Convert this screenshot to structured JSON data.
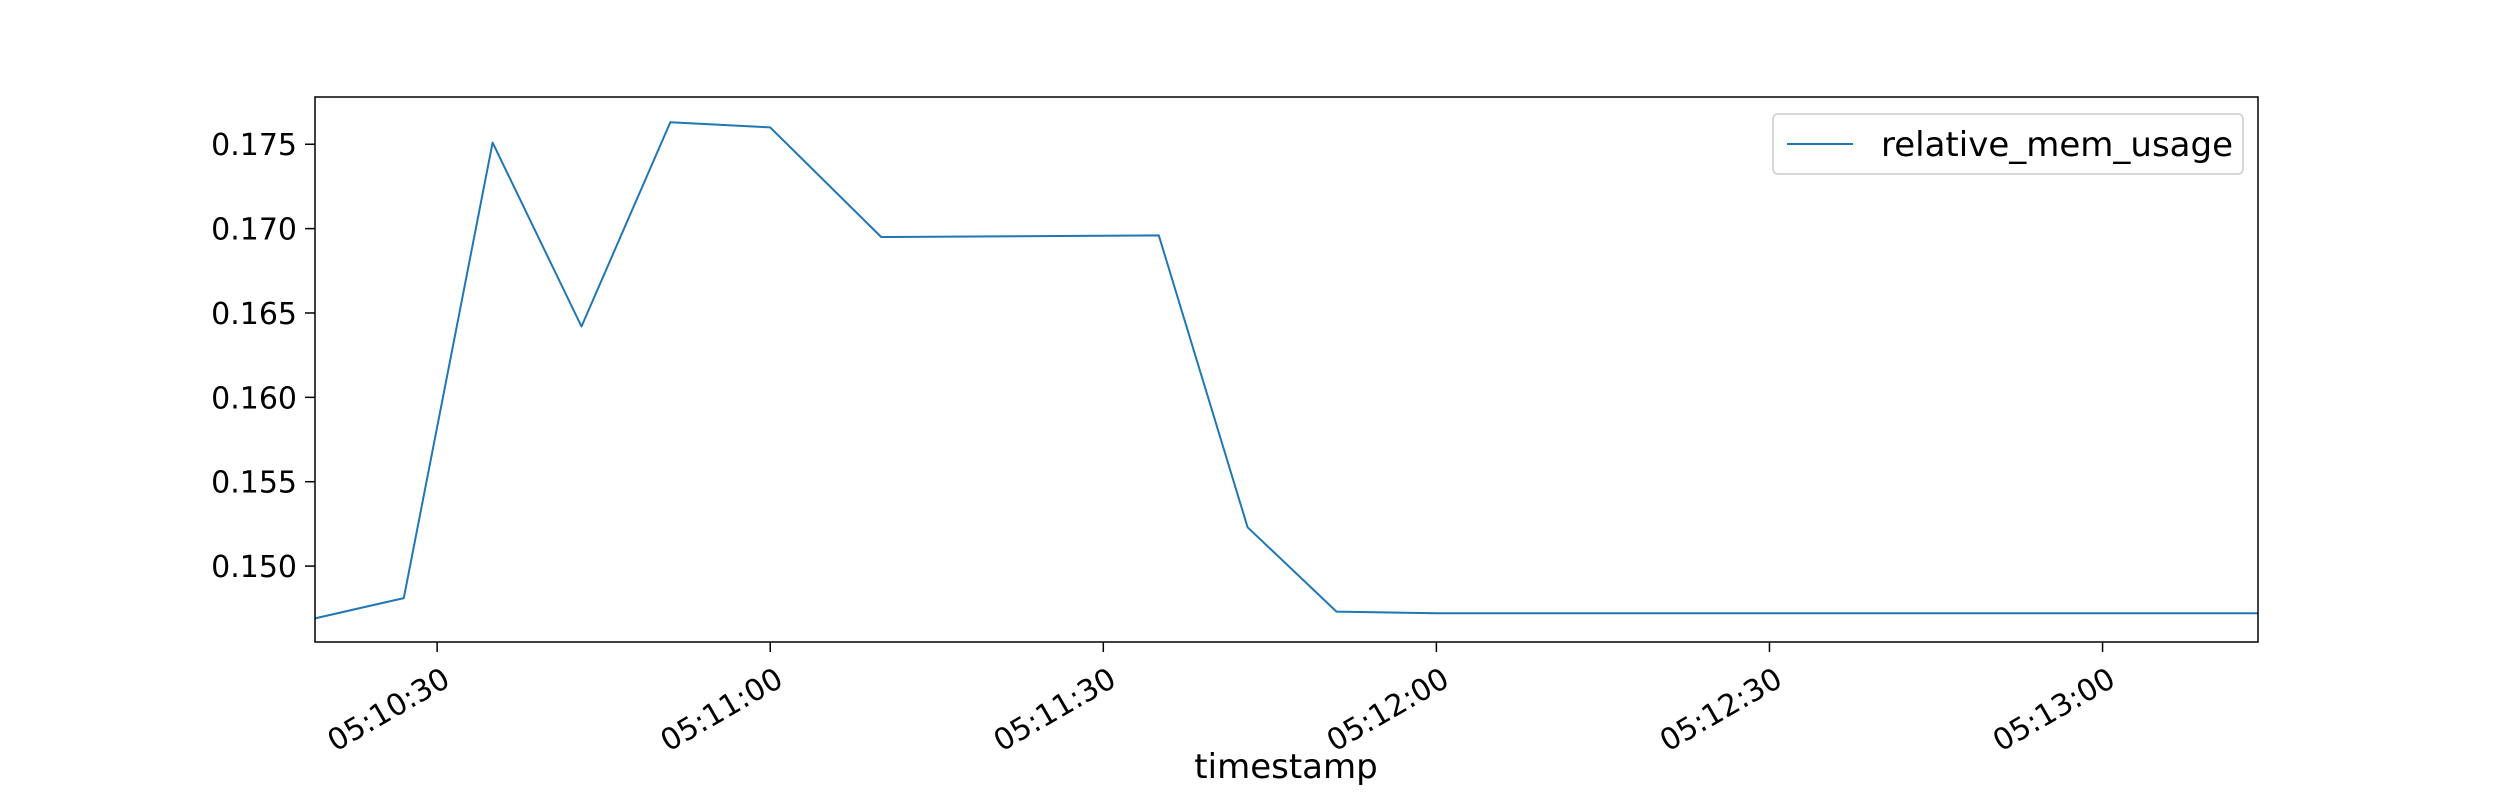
{
  "chart_data": {
    "type": "line",
    "title": "",
    "xlabel": "timestamp",
    "ylabel": "",
    "grid": false,
    "legend_position": "top-right",
    "colors": {
      "line": "#1f77b4",
      "axes": "#000000",
      "legend_border": "#cccccc"
    },
    "x_start": "05:10:19",
    "x_end": "05:13:14",
    "xticks": [
      "05:10:30",
      "05:11:00",
      "05:11:30",
      "05:12:00",
      "05:12:30",
      "05:13:00"
    ],
    "ylim": [
      0.1455,
      0.1778
    ],
    "yticks": [
      "0.150",
      "0.155",
      "0.160",
      "0.165",
      "0.170",
      "0.175"
    ],
    "series": [
      {
        "name": "relative_mem_usage",
        "x": [
          "05:10:19",
          "05:10:27",
          "05:10:35",
          "05:10:43",
          "05:10:51",
          "05:11:00",
          "05:11:10",
          "05:11:35",
          "05:11:43",
          "05:11:51",
          "05:12:00",
          "05:12:30",
          "05:13:00",
          "05:13:14"
        ],
        "y": [
          0.1469,
          0.1481,
          0.1751,
          0.1642,
          0.1763,
          0.176,
          0.1695,
          0.1696,
          0.1523,
          0.1473,
          0.1472,
          0.1472,
          0.1472,
          0.1472
        ]
      }
    ]
  }
}
